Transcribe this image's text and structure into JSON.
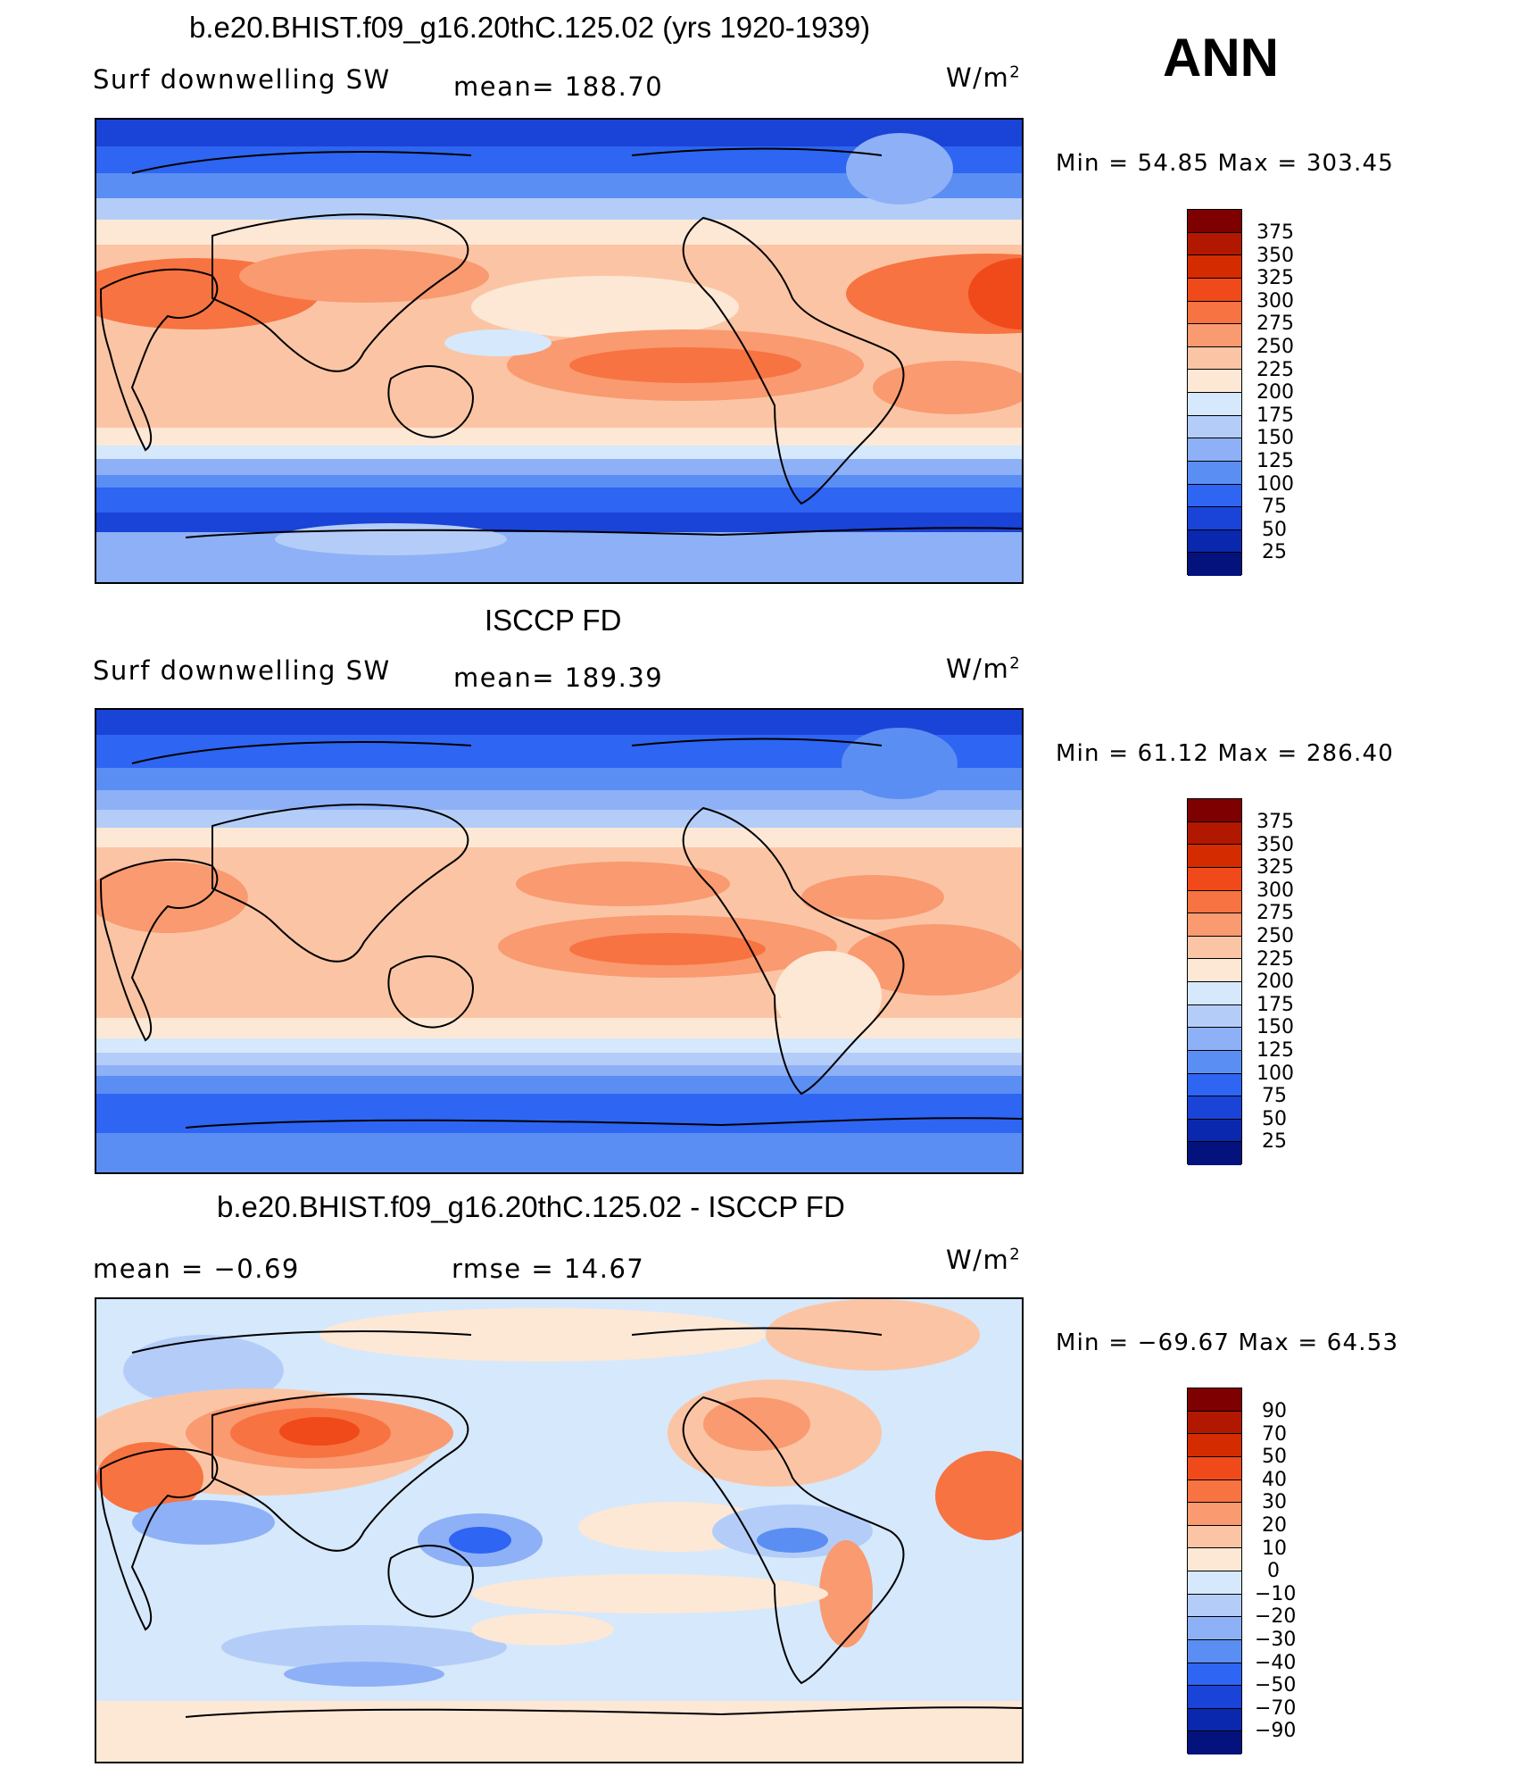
{
  "header_label": "ANN",
  "units_base": "W/m",
  "units_exp": "2",
  "panels": [
    {
      "title": "b.e20.BHIST.f09_g16.20thC.125.02 (yrs 1920-1939)",
      "left_label": "Surf  downwelling  SW",
      "center_label": "mean=  188.70",
      "minmax": "Min  =    54.85  Max  =  303.45",
      "colorbar_labels": [
        "375",
        "350",
        "325",
        "300",
        "275",
        "250",
        "225",
        "200",
        "175",
        "150",
        "125",
        "100",
        "75",
        "50",
        "25"
      ]
    },
    {
      "title": "ISCCP FD",
      "left_label": "Surf  downwelling  SW",
      "center_label": "mean=  189.39",
      "minmax": "Min  =    61.12  Max  =  286.40",
      "colorbar_labels": [
        "375",
        "350",
        "325",
        "300",
        "275",
        "250",
        "225",
        "200",
        "175",
        "150",
        "125",
        "100",
        "75",
        "50",
        "25"
      ]
    },
    {
      "title": "b.e20.BHIST.f09_g16.20thC.125.02 - ISCCP FD",
      "left_label": "mean  =    −0.69",
      "center_label": "rmse  =    14.67",
      "minmax": "Min  =  −69.67  Max  =    64.53",
      "colorbar_labels": [
        "90",
        "70",
        "50",
        "40",
        "30",
        "20",
        "10",
        "0",
        "−10",
        "−20",
        "−30",
        "−40",
        "−50",
        "−70",
        "−90"
      ]
    }
  ],
  "colors": {
    "colorbar_top_to_bottom": [
      "#7f0000",
      "#b21800",
      "#d42b00",
      "#f04a1a",
      "#f77341",
      "#f99a70",
      "#fbc5a5",
      "#fde8d6",
      "#d6e8fb",
      "#b4cdf8",
      "#8eb0f6",
      "#5b8ef3",
      "#2e65f2",
      "#1a43d8",
      "#0a28ae",
      "#03127c"
    ]
  },
  "chart_data": [
    {
      "type": "heatmap",
      "title": "b.e20.BHIST.f09_g16.20thC.125.02 (yrs 1920-1939)",
      "variable": "Surf downwelling SW",
      "units": "W/m2",
      "mean": 188.7,
      "min": 54.85,
      "max": 303.45,
      "levels": [
        25,
        50,
        75,
        100,
        125,
        150,
        175,
        200,
        225,
        250,
        275,
        300,
        325,
        350,
        375
      ]
    },
    {
      "type": "heatmap",
      "title": "ISCCP FD",
      "variable": "Surf downwelling SW",
      "units": "W/m2",
      "mean": 189.39,
      "min": 61.12,
      "max": 286.4,
      "levels": [
        25,
        50,
        75,
        100,
        125,
        150,
        175,
        200,
        225,
        250,
        275,
        300,
        325,
        350,
        375
      ]
    },
    {
      "type": "heatmap",
      "title": "b.e20.BHIST.f09_g16.20thC.125.02 - ISCCP FD",
      "units": "W/m2",
      "mean": -0.69,
      "rmse": 14.67,
      "min": -69.67,
      "max": 64.53,
      "levels": [
        -90,
        -70,
        -50,
        -40,
        -30,
        -20,
        -10,
        0,
        10,
        20,
        30,
        40,
        50,
        70,
        90
      ]
    }
  ]
}
